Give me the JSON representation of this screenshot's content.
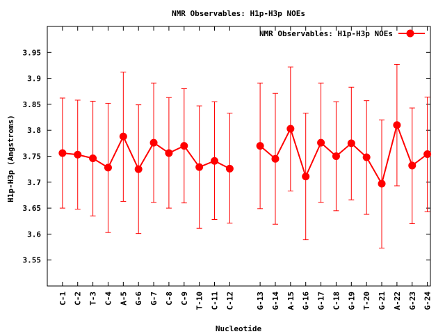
{
  "chart_data": {
    "type": "line",
    "title": "NMR Observables: H1p-H3p NOEs",
    "xlabel": "Nucleotide",
    "ylabel": "H1p-H3p (Angstroms)",
    "ylim": [
      3.5,
      4.0
    ],
    "yticks": [
      "3.55",
      "3.6",
      "3.65",
      "3.7",
      "3.75",
      "3.8",
      "3.85",
      "3.9",
      "3.95"
    ],
    "grid": false,
    "legend_position": "top-right",
    "color": "#ff0000",
    "series": [
      {
        "name": "NMR Observables: H1p-H3p NOEs",
        "segments": [
          {
            "points": [
              {
                "label": "C-1",
                "x": 1,
                "y": 3.756,
                "lo": 3.65,
                "hi": 3.862
              },
              {
                "label": "C-2",
                "x": 2,
                "y": 3.753,
                "lo": 3.648,
                "hi": 3.858
              },
              {
                "label": "T-3",
                "x": 3,
                "y": 3.746,
                "lo": 3.635,
                "hi": 3.856
              },
              {
                "label": "C-4",
                "x": 4,
                "y": 3.728,
                "lo": 3.603,
                "hi": 3.852
              },
              {
                "label": "A-5",
                "x": 5,
                "y": 3.788,
                "lo": 3.663,
                "hi": 3.912
              },
              {
                "label": "G-6",
                "x": 6,
                "y": 3.725,
                "lo": 3.601,
                "hi": 3.849
              },
              {
                "label": "G-7",
                "x": 7,
                "y": 3.776,
                "lo": 3.661,
                "hi": 3.891
              },
              {
                "label": "C-8",
                "x": 8,
                "y": 3.756,
                "lo": 3.65,
                "hi": 3.863
              },
              {
                "label": "C-9",
                "x": 9,
                "y": 3.77,
                "lo": 3.66,
                "hi": 3.88
              },
              {
                "label": "T-10",
                "x": 10,
                "y": 3.729,
                "lo": 3.611,
                "hi": 3.847
              },
              {
                "label": "C-11",
                "x": 11,
                "y": 3.741,
                "lo": 3.628,
                "hi": 3.855
              },
              {
                "label": "C-12",
                "x": 12,
                "y": 3.726,
                "lo": 3.621,
                "hi": 3.833
              }
            ]
          },
          {
            "points": [
              {
                "label": "G-13",
                "x": 14,
                "y": 3.77,
                "lo": 3.649,
                "hi": 3.891
              },
              {
                "label": "G-14",
                "x": 15,
                "y": 3.745,
                "lo": 3.619,
                "hi": 3.871
              },
              {
                "label": "A-15",
                "x": 16,
                "y": 3.803,
                "lo": 3.683,
                "hi": 3.922
              },
              {
                "label": "G-16",
                "x": 17,
                "y": 3.711,
                "lo": 3.589,
                "hi": 3.833
              },
              {
                "label": "G-17",
                "x": 18,
                "y": 3.776,
                "lo": 3.661,
                "hi": 3.891
              },
              {
                "label": "C-18",
                "x": 19,
                "y": 3.75,
                "lo": 3.645,
                "hi": 3.855
              },
              {
                "label": "G-19",
                "x": 20,
                "y": 3.775,
                "lo": 3.666,
                "hi": 3.883
              },
              {
                "label": "T-20",
                "x": 21,
                "y": 3.748,
                "lo": 3.638,
                "hi": 3.857
              },
              {
                "label": "G-21",
                "x": 22,
                "y": 3.697,
                "lo": 3.573,
                "hi": 3.82
              },
              {
                "label": "A-22",
                "x": 23,
                "y": 3.81,
                "lo": 3.693,
                "hi": 3.927
              },
              {
                "label": "G-23",
                "x": 24,
                "y": 3.732,
                "lo": 3.62,
                "hi": 3.843
              },
              {
                "label": "G-24",
                "x": 25,
                "y": 3.754,
                "lo": 3.643,
                "hi": 3.864
              }
            ]
          }
        ]
      }
    ]
  }
}
